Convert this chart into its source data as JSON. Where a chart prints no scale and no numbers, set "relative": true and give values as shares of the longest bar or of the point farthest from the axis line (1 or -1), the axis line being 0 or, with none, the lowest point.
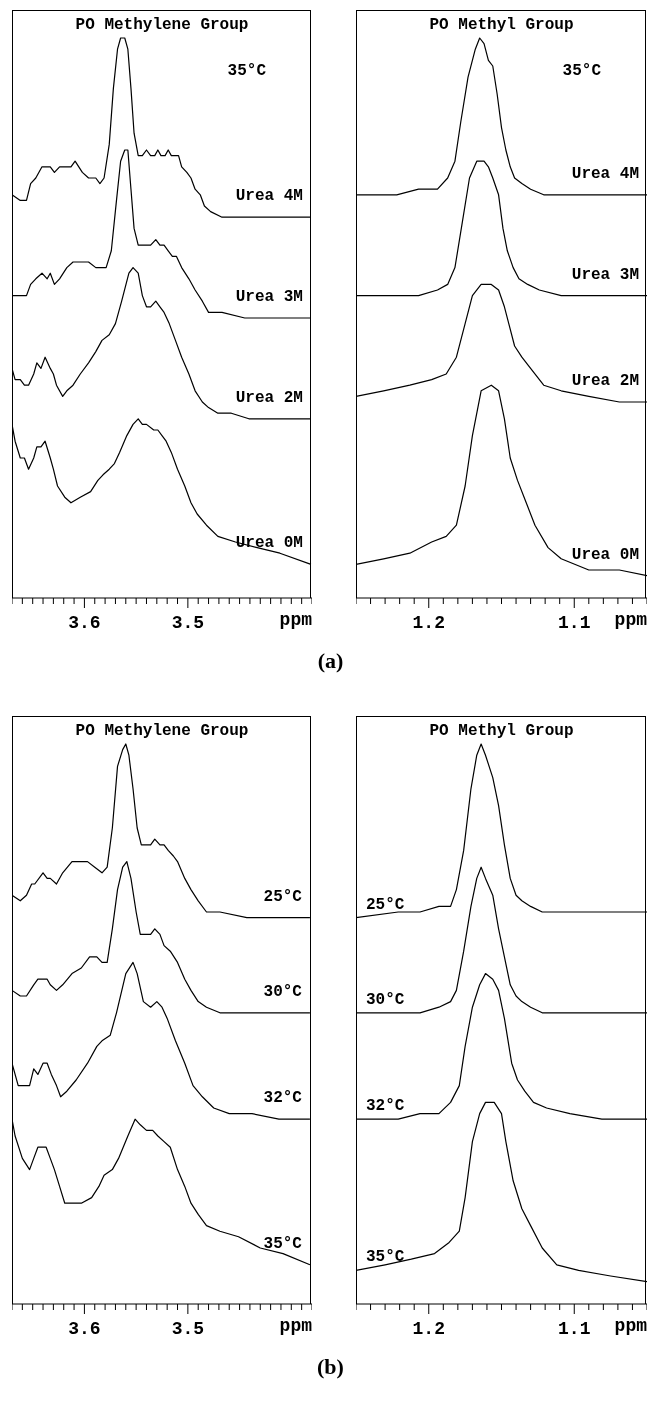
{
  "chart_data": [
    {
      "type": "line",
      "title": "PO Methylene Group",
      "xlabel": "ppm",
      "relative": true,
      "annotations": [
        "35°C",
        "(a)"
      ],
      "xlim": [
        3.67,
        3.38
      ],
      "xticks": [
        {
          "value": 3.67,
          "label": null
        },
        {
          "value": 3.66,
          "label": null
        },
        {
          "value": 3.65,
          "label": null
        },
        {
          "value": 3.64,
          "label": null
        },
        {
          "value": 3.63,
          "label": null
        },
        {
          "value": 3.62,
          "label": null
        },
        {
          "value": 3.61,
          "label": null
        },
        3.6,
        {
          "value": 3.59,
          "label": null
        },
        {
          "value": 3.58,
          "label": null
        },
        {
          "value": 3.57,
          "label": null
        },
        {
          "value": 3.56,
          "label": null
        },
        {
          "value": 3.55,
          "label": null
        },
        {
          "value": 3.54,
          "label": null
        },
        {
          "value": 3.53,
          "label": null
        },
        {
          "value": 3.52,
          "label": null
        },
        {
          "value": 3.51,
          "label": null
        },
        3.5,
        {
          "value": 3.49,
          "label": null
        },
        {
          "value": 3.48,
          "label": null
        },
        {
          "value": 3.47,
          "label": null
        },
        {
          "value": 3.46,
          "label": null
        },
        {
          "value": 3.45,
          "label": null
        },
        {
          "value": 3.44,
          "label": null
        },
        {
          "value": 3.43,
          "label": null
        },
        {
          "value": 3.42,
          "label": null
        },
        {
          "value": 3.41,
          "label": null
        },
        {
          "value": 3.4,
          "label": null
        },
        {
          "value": 3.39,
          "label": null
        },
        {
          "value": 3.38,
          "label": null
        }
      ],
      "series": [
        {
          "name": "Urea 4M",
          "color": "#000000",
          "x": [
            3.67,
            3.662,
            3.656,
            3.652,
            3.647,
            3.641,
            3.636,
            3.633,
            3.629,
            3.624,
            3.619,
            3.613,
            3.609,
            3.602,
            3.596,
            3.589,
            3.585,
            3.581,
            3.576,
            3.572,
            3.568,
            3.565,
            3.561,
            3.558,
            3.555,
            3.552,
            3.548,
            3.544,
            3.54,
            3.536,
            3.532,
            3.529,
            3.526,
            3.522,
            3.519,
            3.516,
            3.512,
            3.509,
            3.506,
            3.501,
            3.497,
            3.493,
            3.488,
            3.484,
            3.478,
            3.467,
            3.445,
            3.424,
            3.403,
            3.381
          ],
          "values": [
            0.72,
            0.71,
            0.71,
            0.74,
            0.75,
            0.77,
            0.77,
            0.77,
            0.76,
            0.77,
            0.77,
            0.77,
            0.78,
            0.76,
            0.75,
            0.75,
            0.74,
            0.75,
            0.81,
            0.91,
            0.98,
            1.0,
            1.0,
            0.98,
            0.91,
            0.83,
            0.79,
            0.79,
            0.8,
            0.79,
            0.79,
            0.8,
            0.79,
            0.79,
            0.8,
            0.79,
            0.79,
            0.79,
            0.77,
            0.76,
            0.75,
            0.73,
            0.72,
            0.7,
            0.69,
            0.68,
            0.68,
            0.68,
            0.68,
            0.68
          ]
        },
        {
          "name": "Urea 3M",
          "color": "#000000",
          "x": [
            3.67,
            3.662,
            3.656,
            3.652,
            3.647,
            3.641,
            3.636,
            3.633,
            3.629,
            3.624,
            3.617,
            3.611,
            3.602,
            3.596,
            3.589,
            3.583,
            3.579,
            3.574,
            3.569,
            3.565,
            3.561,
            3.558,
            3.555,
            3.552,
            3.548,
            3.544,
            3.54,
            3.536,
            3.531,
            3.527,
            3.523,
            3.519,
            3.515,
            3.511,
            3.506,
            3.499,
            3.493,
            3.486,
            3.48,
            3.467,
            3.445,
            3.424,
            3.381
          ],
          "values": [
            0.54,
            0.54,
            0.54,
            0.56,
            0.57,
            0.58,
            0.57,
            0.58,
            0.56,
            0.57,
            0.59,
            0.6,
            0.6,
            0.6,
            0.59,
            0.59,
            0.59,
            0.62,
            0.71,
            0.78,
            0.8,
            0.8,
            0.73,
            0.66,
            0.63,
            0.63,
            0.63,
            0.63,
            0.64,
            0.63,
            0.63,
            0.62,
            0.61,
            0.61,
            0.59,
            0.57,
            0.55,
            0.53,
            0.51,
            0.51,
            0.5,
            0.5,
            0.5
          ]
        },
        {
          "name": "Urea 2M",
          "color": "#000000",
          "x": [
            3.67,
            3.667,
            3.662,
            3.658,
            3.654,
            3.649,
            3.646,
            3.642,
            3.638,
            3.633,
            3.63,
            3.627,
            3.621,
            3.617,
            3.611,
            3.604,
            3.596,
            3.589,
            3.583,
            3.576,
            3.57,
            3.564,
            3.557,
            3.553,
            3.548,
            3.544,
            3.54,
            3.536,
            3.531,
            3.527,
            3.523,
            3.518,
            3.512,
            3.506,
            3.499,
            3.493,
            3.486,
            3.48,
            3.471,
            3.458,
            3.441,
            3.415,
            3.381
          ],
          "values": [
            0.41,
            0.39,
            0.39,
            0.38,
            0.38,
            0.4,
            0.42,
            0.41,
            0.43,
            0.41,
            0.4,
            0.38,
            0.36,
            0.37,
            0.38,
            0.4,
            0.42,
            0.44,
            0.46,
            0.47,
            0.49,
            0.53,
            0.58,
            0.59,
            0.58,
            0.54,
            0.52,
            0.52,
            0.53,
            0.52,
            0.51,
            0.49,
            0.46,
            0.43,
            0.4,
            0.37,
            0.35,
            0.34,
            0.33,
            0.33,
            0.32,
            0.32,
            0.32
          ]
        },
        {
          "name": "Urea 0M",
          "color": "#000000",
          "x": [
            3.67,
            3.667,
            3.662,
            3.658,
            3.654,
            3.649,
            3.646,
            3.642,
            3.638,
            3.633,
            3.63,
            3.626,
            3.619,
            3.613,
            3.604,
            3.594,
            3.587,
            3.582,
            3.576,
            3.571,
            3.566,
            3.559,
            3.553,
            3.548,
            3.544,
            3.54,
            3.533,
            3.529,
            3.525,
            3.521,
            3.516,
            3.51,
            3.503,
            3.497,
            3.491,
            3.482,
            3.471,
            3.454,
            3.433,
            3.411,
            3.381
          ],
          "values": [
            0.31,
            0.28,
            0.25,
            0.25,
            0.23,
            0.25,
            0.27,
            0.27,
            0.28,
            0.25,
            0.23,
            0.2,
            0.18,
            0.17,
            0.18,
            0.19,
            0.21,
            0.22,
            0.23,
            0.24,
            0.26,
            0.29,
            0.31,
            0.32,
            0.31,
            0.31,
            0.3,
            0.3,
            0.29,
            0.28,
            0.26,
            0.23,
            0.2,
            0.17,
            0.15,
            0.13,
            0.11,
            0.1,
            0.09,
            0.08,
            0.06
          ]
        }
      ]
    },
    {
      "type": "line",
      "title": "PO Methyl Group",
      "xlabel": "ppm",
      "relative": true,
      "annotations": [
        "35°C"
      ],
      "xlim": [
        1.25,
        1.05
      ],
      "xticks": [
        {
          "value": 1.25,
          "label": null
        },
        {
          "value": 1.24,
          "label": null
        },
        {
          "value": 1.23,
          "label": null
        },
        {
          "value": 1.22,
          "label": null
        },
        {
          "value": 1.21,
          "label": null
        },
        1.2,
        {
          "value": 1.19,
          "label": null
        },
        {
          "value": 1.18,
          "label": null
        },
        {
          "value": 1.17,
          "label": null
        },
        {
          "value": 1.16,
          "label": null
        },
        {
          "value": 1.15,
          "label": null
        },
        {
          "value": 1.14,
          "label": null
        },
        {
          "value": 1.13,
          "label": null
        },
        {
          "value": 1.12,
          "label": null
        },
        {
          "value": 1.11,
          "label": null
        },
        1.1,
        {
          "value": 1.09,
          "label": null
        },
        {
          "value": 1.08,
          "label": null
        },
        {
          "value": 1.07,
          "label": null
        },
        {
          "value": 1.06,
          "label": null
        },
        {
          "value": 1.05,
          "label": null
        }
      ],
      "series": [
        {
          "name": "Urea 4M",
          "color": "#000000",
          "x": [
            1.25,
            1.222,
            1.207,
            1.194,
            1.187,
            1.182,
            1.178,
            1.173,
            1.168,
            1.165,
            1.162,
            1.159,
            1.156,
            1.153,
            1.15,
            1.147,
            1.144,
            1.141,
            1.136,
            1.13,
            1.121,
            1.099,
            1.069,
            1.05
          ],
          "values": [
            0.72,
            0.72,
            0.73,
            0.73,
            0.75,
            0.78,
            0.85,
            0.93,
            0.98,
            1.0,
            0.99,
            0.96,
            0.95,
            0.9,
            0.84,
            0.8,
            0.77,
            0.75,
            0.74,
            0.73,
            0.72,
            0.72,
            0.72,
            0.72
          ]
        },
        {
          "name": "Urea 3M",
          "color": "#000000",
          "x": [
            1.25,
            1.222,
            1.207,
            1.194,
            1.187,
            1.182,
            1.177,
            1.172,
            1.167,
            1.162,
            1.159,
            1.156,
            1.152,
            1.149,
            1.146,
            1.142,
            1.138,
            1.132,
            1.124,
            1.109,
            1.084,
            1.05
          ],
          "values": [
            0.54,
            0.54,
            0.54,
            0.55,
            0.56,
            0.59,
            0.67,
            0.75,
            0.78,
            0.78,
            0.77,
            0.75,
            0.72,
            0.66,
            0.62,
            0.59,
            0.57,
            0.56,
            0.55,
            0.54,
            0.54,
            0.54
          ]
        },
        {
          "name": "Urea 2M",
          "color": "#000000",
          "x": [
            1.25,
            1.231,
            1.213,
            1.198,
            1.188,
            1.181,
            1.175,
            1.17,
            1.164,
            1.157,
            1.152,
            1.148,
            1.145,
            1.141,
            1.136,
            1.13,
            1.121,
            1.109,
            1.09,
            1.069,
            1.05
          ],
          "values": [
            0.36,
            0.37,
            0.38,
            0.39,
            0.4,
            0.43,
            0.49,
            0.54,
            0.56,
            0.56,
            0.55,
            0.52,
            0.49,
            0.45,
            0.43,
            0.41,
            0.38,
            0.37,
            0.36,
            0.35,
            0.35
          ]
        },
        {
          "name": "Urea 0M",
          "color": "#000000",
          "x": [
            1.25,
            1.231,
            1.213,
            1.198,
            1.188,
            1.181,
            1.175,
            1.17,
            1.164,
            1.157,
            1.152,
            1.148,
            1.144,
            1.139,
            1.133,
            1.127,
            1.118,
            1.109,
            1.09,
            1.069,
            1.05
          ],
          "values": [
            0.06,
            0.07,
            0.08,
            0.1,
            0.11,
            0.13,
            0.2,
            0.29,
            0.37,
            0.38,
            0.37,
            0.32,
            0.25,
            0.21,
            0.17,
            0.13,
            0.09,
            0.07,
            0.05,
            0.05,
            0.04
          ]
        }
      ]
    },
    {
      "type": "line",
      "title": "PO Methylene Group",
      "xlabel": "ppm",
      "relative": true,
      "annotations": [
        "(b)"
      ],
      "xlim": [
        3.67,
        3.38
      ],
      "xticks": [
        {
          "value": 3.67,
          "label": null
        },
        {
          "value": 3.66,
          "label": null
        },
        {
          "value": 3.65,
          "label": null
        },
        {
          "value": 3.64,
          "label": null
        },
        {
          "value": 3.63,
          "label": null
        },
        {
          "value": 3.62,
          "label": null
        },
        {
          "value": 3.61,
          "label": null
        },
        3.6,
        {
          "value": 3.59,
          "label": null
        },
        {
          "value": 3.58,
          "label": null
        },
        {
          "value": 3.57,
          "label": null
        },
        {
          "value": 3.56,
          "label": null
        },
        {
          "value": 3.55,
          "label": null
        },
        {
          "value": 3.54,
          "label": null
        },
        {
          "value": 3.53,
          "label": null
        },
        {
          "value": 3.52,
          "label": null
        },
        {
          "value": 3.51,
          "label": null
        },
        3.5,
        {
          "value": 3.49,
          "label": null
        },
        {
          "value": 3.48,
          "label": null
        },
        {
          "value": 3.47,
          "label": null
        },
        {
          "value": 3.46,
          "label": null
        },
        {
          "value": 3.45,
          "label": null
        },
        {
          "value": 3.44,
          "label": null
        },
        {
          "value": 3.43,
          "label": null
        },
        {
          "value": 3.42,
          "label": null
        },
        {
          "value": 3.41,
          "label": null
        },
        {
          "value": 3.4,
          "label": null
        },
        {
          "value": 3.39,
          "label": null
        },
        {
          "value": 3.38,
          "label": null
        }
      ],
      "series": [
        {
          "name": "25°C",
          "color": "#000000",
          "x": [
            3.67,
            3.662,
            3.656,
            3.651,
            3.648,
            3.64,
            3.636,
            3.633,
            3.627,
            3.621,
            3.612,
            3.603,
            3.597,
            3.59,
            3.583,
            3.578,
            3.573,
            3.568,
            3.563,
            3.56,
            3.557,
            3.553,
            3.549,
            3.545,
            3.54,
            3.536,
            3.532,
            3.527,
            3.523,
            3.519,
            3.514,
            3.51,
            3.503,
            3.497,
            3.49,
            3.482,
            3.469,
            3.443,
            3.412,
            3.382
          ],
          "values": [
            0.73,
            0.72,
            0.73,
            0.75,
            0.75,
            0.77,
            0.76,
            0.76,
            0.75,
            0.77,
            0.79,
            0.79,
            0.79,
            0.78,
            0.77,
            0.78,
            0.85,
            0.96,
            0.99,
            1.0,
            0.98,
            0.92,
            0.85,
            0.82,
            0.82,
            0.82,
            0.83,
            0.82,
            0.82,
            0.81,
            0.8,
            0.79,
            0.76,
            0.74,
            0.72,
            0.7,
            0.7,
            0.69,
            0.69,
            0.69
          ]
        },
        {
          "name": "30°C",
          "color": "#000000",
          "x": [
            3.67,
            3.662,
            3.656,
            3.649,
            3.645,
            3.64,
            3.636,
            3.633,
            3.627,
            3.621,
            3.612,
            3.603,
            3.595,
            3.588,
            3.583,
            3.578,
            3.573,
            3.568,
            3.563,
            3.559,
            3.555,
            3.55,
            3.546,
            3.542,
            3.536,
            3.532,
            3.527,
            3.523,
            3.517,
            3.51,
            3.503,
            3.497,
            3.49,
            3.482,
            3.469,
            3.443,
            3.412,
            3.382
          ],
          "values": [
            0.56,
            0.55,
            0.55,
            0.57,
            0.58,
            0.58,
            0.58,
            0.57,
            0.56,
            0.57,
            0.59,
            0.6,
            0.62,
            0.62,
            0.61,
            0.61,
            0.67,
            0.74,
            0.78,
            0.79,
            0.76,
            0.7,
            0.66,
            0.66,
            0.66,
            0.67,
            0.66,
            0.64,
            0.63,
            0.61,
            0.58,
            0.56,
            0.54,
            0.53,
            0.52,
            0.52,
            0.52,
            0.52
          ]
        },
        {
          "name": "32°C",
          "color": "#000000",
          "x": [
            3.67,
            3.664,
            3.658,
            3.653,
            3.649,
            3.645,
            3.64,
            3.636,
            3.632,
            3.627,
            3.623,
            3.617,
            3.608,
            3.597,
            3.588,
            3.583,
            3.575,
            3.569,
            3.56,
            3.553,
            3.549,
            3.543,
            3.536,
            3.53,
            3.525,
            3.52,
            3.512,
            3.503,
            3.495,
            3.486,
            3.475,
            3.46,
            3.438,
            3.412,
            3.382
          ],
          "values": [
            0.43,
            0.39,
            0.39,
            0.39,
            0.42,
            0.41,
            0.43,
            0.43,
            0.41,
            0.39,
            0.37,
            0.38,
            0.4,
            0.43,
            0.46,
            0.47,
            0.48,
            0.52,
            0.59,
            0.61,
            0.59,
            0.54,
            0.53,
            0.54,
            0.53,
            0.51,
            0.47,
            0.43,
            0.39,
            0.37,
            0.35,
            0.34,
            0.34,
            0.33,
            0.33
          ]
        },
        {
          "name": "35°C",
          "color": "#000000",
          "x": [
            3.67,
            3.667,
            3.66,
            3.653,
            3.649,
            3.645,
            3.64,
            3.637,
            3.633,
            3.629,
            3.624,
            3.619,
            3.612,
            3.603,
            3.593,
            3.586,
            3.581,
            3.573,
            3.567,
            3.558,
            3.551,
            3.546,
            3.54,
            3.534,
            3.529,
            3.523,
            3.517,
            3.51,
            3.503,
            3.497,
            3.49,
            3.482,
            3.469,
            3.451,
            3.43,
            3.408,
            3.382
          ],
          "values": [
            0.33,
            0.3,
            0.26,
            0.24,
            0.26,
            0.28,
            0.28,
            0.28,
            0.26,
            0.24,
            0.21,
            0.18,
            0.18,
            0.18,
            0.19,
            0.21,
            0.23,
            0.24,
            0.26,
            0.3,
            0.33,
            0.32,
            0.31,
            0.31,
            0.3,
            0.29,
            0.28,
            0.24,
            0.21,
            0.18,
            0.16,
            0.14,
            0.13,
            0.12,
            0.1,
            0.09,
            0.07
          ]
        }
      ]
    },
    {
      "type": "line",
      "title": "PO Methyl Group",
      "xlabel": "ppm",
      "relative": true,
      "xlim": [
        1.25,
        1.05
      ],
      "xticks": [
        {
          "value": 1.25,
          "label": null
        },
        {
          "value": 1.24,
          "label": null
        },
        {
          "value": 1.23,
          "label": null
        },
        {
          "value": 1.22,
          "label": null
        },
        {
          "value": 1.21,
          "label": null
        },
        1.2,
        {
          "value": 1.19,
          "label": null
        },
        {
          "value": 1.18,
          "label": null
        },
        {
          "value": 1.17,
          "label": null
        },
        {
          "value": 1.16,
          "label": null
        },
        {
          "value": 1.15,
          "label": null
        },
        {
          "value": 1.14,
          "label": null
        },
        {
          "value": 1.13,
          "label": null
        },
        {
          "value": 1.12,
          "label": null
        },
        {
          "value": 1.11,
          "label": null
        },
        1.1,
        {
          "value": 1.09,
          "label": null
        },
        {
          "value": 1.08,
          "label": null
        },
        {
          "value": 1.07,
          "label": null
        },
        {
          "value": 1.06,
          "label": null
        },
        {
          "value": 1.05,
          "label": null
        }
      ],
      "series": [
        {
          "name": "25°C",
          "color": "#000000",
          "x": [
            1.25,
            1.221,
            1.206,
            1.193,
            1.185,
            1.181,
            1.176,
            1.171,
            1.167,
            1.164,
            1.161,
            1.156,
            1.152,
            1.148,
            1.144,
            1.14,
            1.136,
            1.13,
            1.122,
            1.106,
            1.081,
            1.05
          ],
          "values": [
            0.69,
            0.7,
            0.7,
            0.71,
            0.71,
            0.74,
            0.81,
            0.92,
            0.98,
            1.0,
            0.98,
            0.94,
            0.89,
            0.82,
            0.76,
            0.73,
            0.72,
            0.71,
            0.7,
            0.7,
            0.7,
            0.7
          ]
        },
        {
          "name": "30°C",
          "color": "#000000",
          "x": [
            1.25,
            1.221,
            1.206,
            1.193,
            1.185,
            1.181,
            1.176,
            1.171,
            1.167,
            1.164,
            1.161,
            1.156,
            1.152,
            1.148,
            1.144,
            1.14,
            1.136,
            1.13,
            1.122,
            1.097,
            1.05
          ],
          "values": [
            0.52,
            0.52,
            0.52,
            0.53,
            0.54,
            0.56,
            0.63,
            0.71,
            0.76,
            0.78,
            0.76,
            0.73,
            0.67,
            0.62,
            0.57,
            0.55,
            0.54,
            0.53,
            0.52,
            0.52,
            0.52
          ]
        },
        {
          "name": "32°C",
          "color": "#000000",
          "x": [
            1.25,
            1.221,
            1.206,
            1.193,
            1.185,
            1.179,
            1.175,
            1.17,
            1.165,
            1.161,
            1.156,
            1.152,
            1.148,
            1.143,
            1.139,
            1.134,
            1.128,
            1.119,
            1.103,
            1.081,
            1.05
          ],
          "values": [
            0.33,
            0.33,
            0.34,
            0.34,
            0.36,
            0.39,
            0.46,
            0.53,
            0.57,
            0.59,
            0.58,
            0.56,
            0.51,
            0.43,
            0.4,
            0.38,
            0.36,
            0.35,
            0.34,
            0.33,
            0.33
          ]
        },
        {
          "name": "35°C",
          "color": "#000000",
          "x": [
            1.25,
            1.23,
            1.212,
            1.196,
            1.186,
            1.179,
            1.175,
            1.17,
            1.165,
            1.161,
            1.155,
            1.15,
            1.147,
            1.142,
            1.136,
            1.13,
            1.122,
            1.112,
            1.097,
            1.075,
            1.05
          ],
          "values": [
            0.06,
            0.07,
            0.08,
            0.09,
            0.11,
            0.13,
            0.19,
            0.29,
            0.34,
            0.36,
            0.36,
            0.34,
            0.29,
            0.22,
            0.17,
            0.14,
            0.1,
            0.07,
            0.06,
            0.05,
            0.04
          ]
        }
      ]
    }
  ]
}
